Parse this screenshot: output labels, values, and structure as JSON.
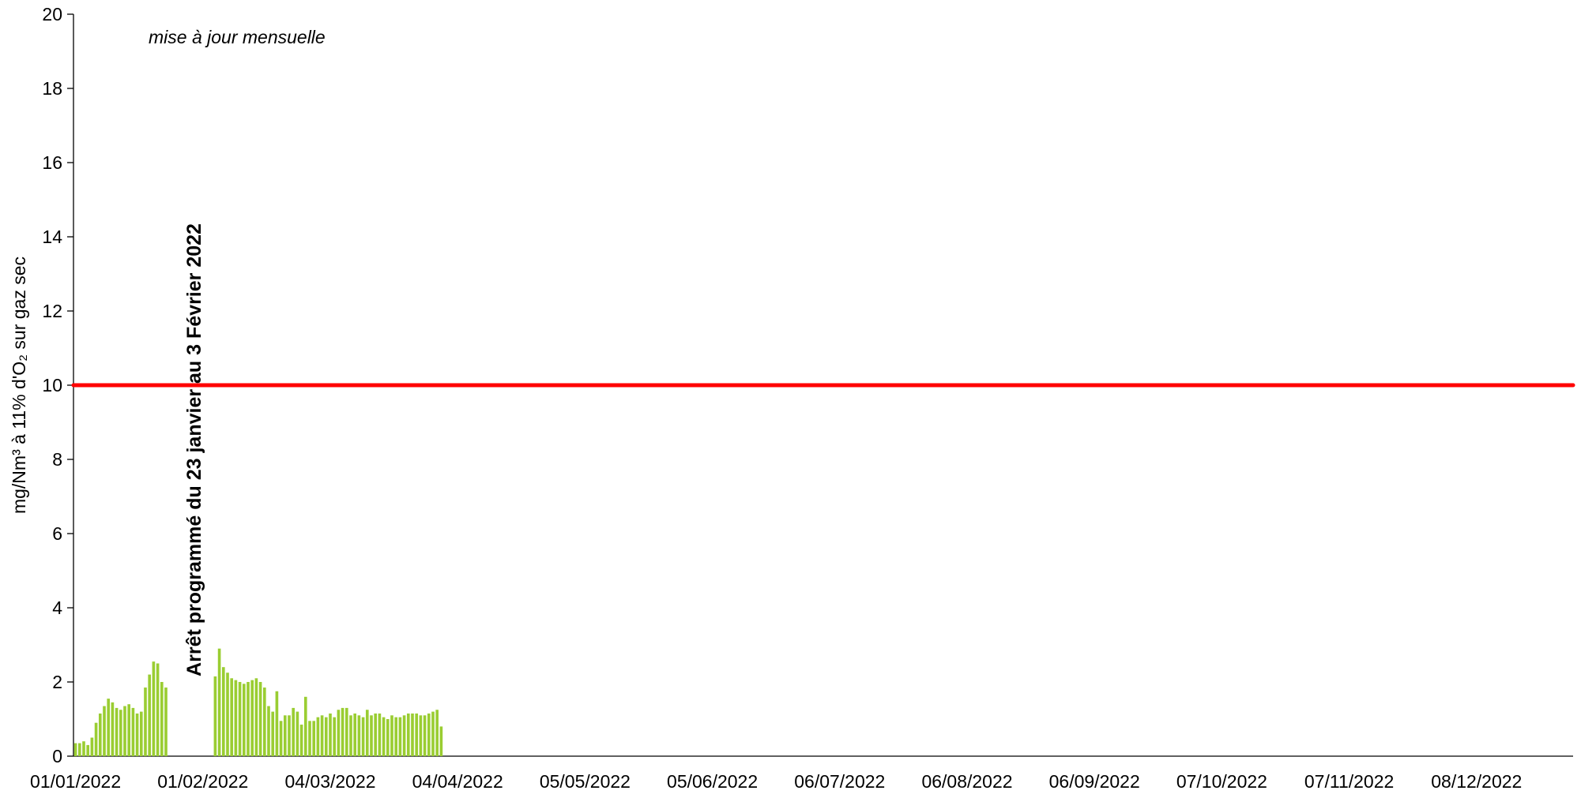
{
  "chart_data": {
    "type": "bar",
    "ylabel": "mg/Nm³ à 11% d'O₂ sur gaz sec",
    "annotations": [
      "mise à jour mensuelle",
      "Arrêt programmé du 23 janvier au 3 Février 2022"
    ],
    "color": "#9acd32",
    "reference_line": {
      "value": 10,
      "color": "#ff0000"
    },
    "xlim": [
      "2022-01-01",
      "2022-12-31"
    ],
    "xticks": [
      {
        "value": "2022-01-01",
        "label": "01/01/2022"
      },
      {
        "value": "2022-02-01",
        "label": "01/02/2022"
      },
      {
        "value": "2022-03-04",
        "label": "04/03/2022"
      },
      {
        "value": "2022-04-04",
        "label": "04/04/2022"
      },
      {
        "value": "2022-05-05",
        "label": "05/05/2022"
      },
      {
        "value": "2022-06-05",
        "label": "05/06/2022"
      },
      {
        "value": "2022-07-06",
        "label": "06/07/2022"
      },
      {
        "value": "2022-08-06",
        "label": "06/08/2022"
      },
      {
        "value": "2022-09-06",
        "label": "06/09/2022"
      },
      {
        "value": "2022-10-07",
        "label": "07/10/2022"
      },
      {
        "value": "2022-11-07",
        "label": "07/11/2022"
      },
      {
        "value": "2022-12-08",
        "label": "08/12/2022"
      }
    ],
    "ylim": [
      0,
      20
    ],
    "yticks": [
      0,
      2,
      4,
      6,
      8,
      10,
      12,
      14,
      16,
      18,
      20
    ],
    "x": [
      "2022-01-01",
      "2022-01-02",
      "2022-01-03",
      "2022-01-04",
      "2022-01-05",
      "2022-01-06",
      "2022-01-07",
      "2022-01-08",
      "2022-01-09",
      "2022-01-10",
      "2022-01-11",
      "2022-01-12",
      "2022-01-13",
      "2022-01-14",
      "2022-01-15",
      "2022-01-16",
      "2022-01-17",
      "2022-01-18",
      "2022-01-19",
      "2022-01-20",
      "2022-01-21",
      "2022-01-22",
      "2022-01-23",
      "2022-02-04",
      "2022-02-05",
      "2022-02-06",
      "2022-02-07",
      "2022-02-08",
      "2022-02-09",
      "2022-02-10",
      "2022-02-11",
      "2022-02-12",
      "2022-02-13",
      "2022-02-14",
      "2022-02-15",
      "2022-02-16",
      "2022-02-17",
      "2022-02-18",
      "2022-02-19",
      "2022-02-20",
      "2022-02-21",
      "2022-02-22",
      "2022-02-23",
      "2022-02-24",
      "2022-02-25",
      "2022-02-26",
      "2022-02-27",
      "2022-02-28",
      "2022-03-01",
      "2022-03-02",
      "2022-03-03",
      "2022-03-04",
      "2022-03-05",
      "2022-03-06",
      "2022-03-07",
      "2022-03-08",
      "2022-03-09",
      "2022-03-10",
      "2022-03-11",
      "2022-03-12",
      "2022-03-13",
      "2022-03-14",
      "2022-03-15",
      "2022-03-16",
      "2022-03-17",
      "2022-03-18",
      "2022-03-19",
      "2022-03-20",
      "2022-03-21",
      "2022-03-22",
      "2022-03-23",
      "2022-03-24",
      "2022-03-25",
      "2022-03-26",
      "2022-03-27",
      "2022-03-28",
      "2022-03-29",
      "2022-03-30",
      "2022-03-31"
    ],
    "values": [
      0.35,
      0.35,
      0.4,
      0.3,
      0.5,
      0.9,
      1.15,
      1.35,
      1.55,
      1.45,
      1.3,
      1.25,
      1.35,
      1.4,
      1.3,
      1.15,
      1.2,
      1.85,
      2.2,
      2.55,
      2.5,
      2.0,
      1.85,
      2.15,
      2.9,
      2.4,
      2.25,
      2.1,
      2.05,
      2.0,
      1.95,
      2.0,
      2.05,
      2.1,
      2.0,
      1.85,
      1.35,
      1.2,
      1.75,
      0.95,
      1.1,
      1.1,
      1.3,
      1.2,
      0.85,
      1.6,
      0.95,
      0.95,
      1.05,
      1.1,
      1.05,
      1.15,
      1.05,
      1.25,
      1.3,
      1.3,
      1.1,
      1.15,
      1.1,
      1.05,
      1.25,
      1.1,
      1.15,
      1.15,
      1.05,
      1.0,
      1.1,
      1.05,
      1.05,
      1.1,
      1.15,
      1.15,
      1.15,
      1.1,
      1.1,
      1.15,
      1.2,
      1.25,
      0.8
    ]
  }
}
